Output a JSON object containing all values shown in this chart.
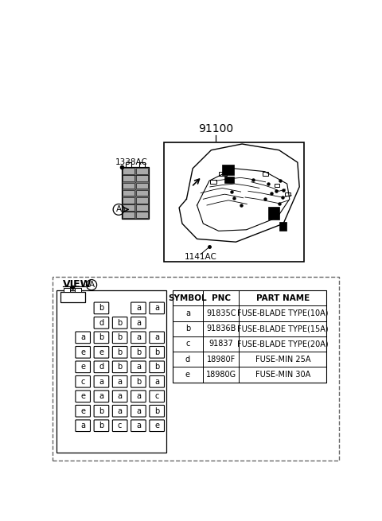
{
  "bg_color": "#ffffff",
  "part_number_label": "91100",
  "label_1338AC": "1338AC",
  "label_1141AC": "1141AC",
  "view_a_label": "VIEW",
  "table_headers": [
    "SYMBOL",
    "PNC",
    "PART NAME"
  ],
  "table_rows": [
    [
      "a",
      "91835C",
      "FUSE-BLADE TYPE(10A)"
    ],
    [
      "b",
      "91836B",
      "FUSE-BLADE TYPE(15A)"
    ],
    [
      "c",
      "91837",
      "FUSE-BLADE TYPE(20A)"
    ],
    [
      "d",
      "18980F",
      "FUSE-MIN 25A"
    ],
    [
      "e",
      "18980G",
      "FUSE-MIN 30A"
    ]
  ],
  "fuse_rows": [
    [
      1,
      [
        "b",
        "",
        "a",
        "a"
      ]
    ],
    [
      1,
      [
        "d",
        "b",
        "a",
        ""
      ]
    ],
    [
      0,
      [
        "a",
        "b",
        "b",
        "a",
        "a"
      ]
    ],
    [
      0,
      [
        "e",
        "e",
        "b",
        "b",
        "b"
      ]
    ],
    [
      0,
      [
        "e",
        "d",
        "b",
        "a",
        "b"
      ]
    ],
    [
      0,
      [
        "c",
        "a",
        "a",
        "b",
        "a"
      ]
    ],
    [
      0,
      [
        "e",
        "a",
        "a",
        "a",
        "c"
      ]
    ],
    [
      0,
      [
        "e",
        "b",
        "a",
        "a",
        "b"
      ]
    ],
    [
      0,
      [
        "a",
        "b",
        "c",
        "a",
        "e"
      ]
    ]
  ]
}
